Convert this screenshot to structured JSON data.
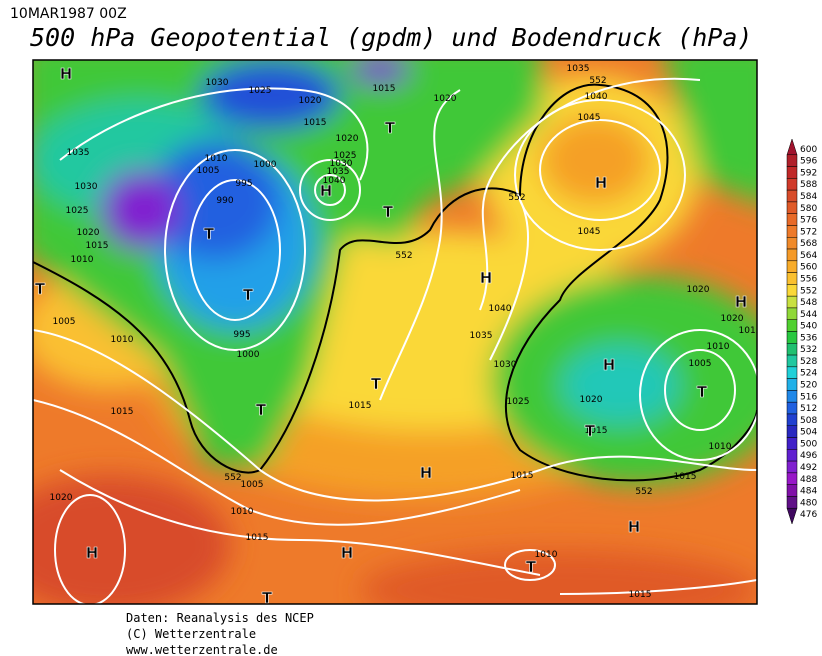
{
  "header": {
    "date": "10MAR1987 00Z",
    "title": "500 hPa Geopotential (gpdm) und Bodendruck (hPa)"
  },
  "map": {
    "isobar_labels": [
      "1030",
      "1025",
      "1020",
      "1015",
      "1020",
      "1035",
      "552",
      "1040",
      "1045",
      "1015",
      "1020",
      "1025",
      "1030",
      "1035",
      "1040",
      "1035",
      "1010",
      "1005",
      "1000",
      "995",
      "990",
      "1030",
      "1025",
      "1020",
      "1015",
      "1010",
      "552",
      "552",
      "1045",
      "1040",
      "1035",
      "1030",
      "1025",
      "1020",
      "1015",
      "1010",
      "1005",
      "1010",
      "1020",
      "1020",
      "1015",
      "1005",
      "1010",
      "995",
      "1000",
      "1015",
      "1015",
      "1020",
      "1005",
      "1010",
      "1015",
      "1015",
      "1015",
      "552",
      "552",
      "1010",
      "1015"
    ],
    "pressure_centers": [
      "H",
      "T",
      "H",
      "T",
      "T",
      "T",
      "H",
      "H",
      "H",
      "H",
      "T",
      "T",
      "T",
      "T",
      "T",
      "H",
      "H",
      "H",
      "H",
      "T",
      "T"
    ]
  },
  "colorbar": {
    "levels": [
      600,
      596,
      592,
      588,
      584,
      580,
      576,
      572,
      568,
      564,
      560,
      556,
      552,
      548,
      544,
      540,
      536,
      532,
      528,
      524,
      520,
      516,
      512,
      508,
      504,
      500,
      496,
      492,
      488,
      484,
      480,
      476
    ],
    "colors": [
      "#a0142e",
      "#b0202a",
      "#c02828",
      "#d03a2a",
      "#d84c2a",
      "#e05a28",
      "#e86a28",
      "#ee7a2a",
      "#f08a2a",
      "#f59a28",
      "#f8ac2a",
      "#fac030",
      "#fad838",
      "#c8e040",
      "#90d838",
      "#50d030",
      "#28c840",
      "#20c070",
      "#20c8a0",
      "#20d0d8",
      "#20b0e8",
      "#2088e8",
      "#2060e0",
      "#2040d0",
      "#2828c0",
      "#4020c8",
      "#6020d0",
      "#8020d0",
      "#9818c8",
      "#8010a8",
      "#601088",
      "#400860"
    ]
  },
  "footer": {
    "lines": [
      "Daten: Reanalysis des NCEP",
      "(C) Wetterzentrale",
      "www.wetterzentrale.de"
    ]
  }
}
